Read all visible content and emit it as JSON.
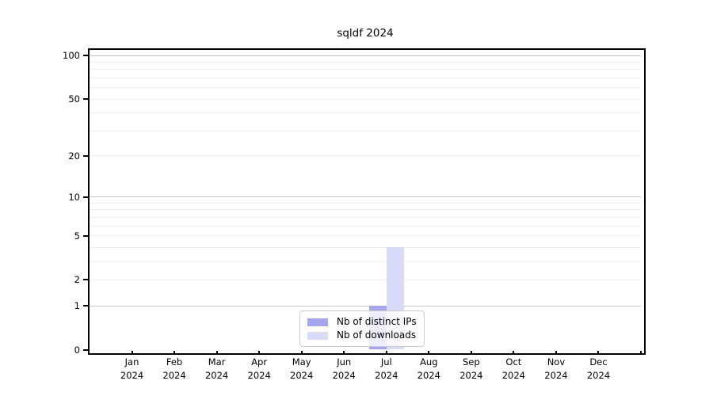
{
  "chart_data": {
    "type": "bar",
    "title": "sqldf 2024",
    "categories": [
      "Jan",
      "Feb",
      "Mar",
      "Apr",
      "May",
      "Jun",
      "Jul",
      "Aug",
      "Sep",
      "Oct",
      "Nov",
      "Dec"
    ],
    "category_year": "2024",
    "series": [
      {
        "name": "Nb of distinct IPs",
        "color": "#a5a5ef",
        "values": [
          0,
          0,
          0,
          0,
          0,
          0,
          1,
          0,
          0,
          0,
          0,
          0
        ]
      },
      {
        "name": "Nb of downloads",
        "color": "#d9d9f8",
        "values": [
          0,
          0,
          0,
          0,
          0,
          0,
          4,
          0,
          0,
          0,
          0,
          0
        ]
      }
    ],
    "yscale": "log1p",
    "ylim": [
      0,
      110
    ],
    "ytick_labels": [
      0,
      1,
      2,
      5,
      10,
      20,
      50,
      100
    ],
    "major_gridlines": [
      1,
      10,
      100
    ],
    "minor_gridlines": [
      2,
      3,
      4,
      5,
      6,
      7,
      8,
      9,
      20,
      30,
      40,
      50,
      60,
      70,
      80,
      90
    ],
    "grid": true,
    "legend_position": "bottom-center"
  },
  "colors": {
    "background": "#ffffff",
    "axis": "#000000",
    "major_grid": "#c6c6c6",
    "minor_grid": "#ededed",
    "legend_border": "#cccccc",
    "bar_distinct_ips": "#a5a5ef",
    "bar_downloads": "#d9d9f8"
  }
}
